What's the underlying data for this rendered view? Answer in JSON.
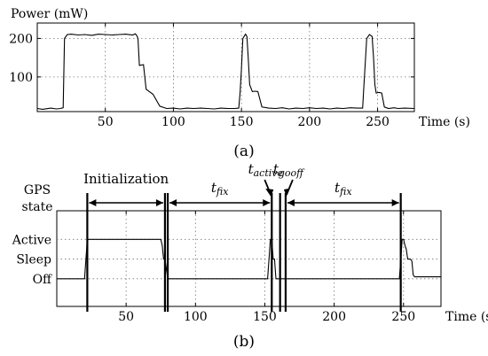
{
  "chart_data": [
    {
      "panel": "(a)",
      "type": "line",
      "ylabel": "Power (mW)",
      "xlabel": "Time (s)",
      "xlim": [
        0,
        277
      ],
      "ylim": [
        10,
        240
      ],
      "xticks": [
        50,
        100,
        150,
        200,
        250
      ],
      "yticks": [
        100,
        200
      ],
      "grid": true,
      "series": [
        {
          "x": [
            0,
            4,
            10,
            14,
            17,
            19,
            20,
            22,
            25,
            30,
            35,
            40,
            45,
            50,
            55,
            60,
            65,
            70,
            72,
            73,
            74,
            75,
            78,
            80,
            85,
            90,
            95,
            100,
            105,
            110,
            115,
            120,
            125,
            130,
            135,
            140,
            145,
            148,
            149,
            150,
            151,
            153,
            154,
            155,
            156,
            158,
            160,
            162,
            165,
            170,
            175,
            180,
            185,
            190,
            195,
            200,
            205,
            210,
            215,
            220,
            225,
            230,
            235,
            239,
            240,
            242,
            244,
            246,
            247,
            248,
            249,
            251,
            253,
            255,
            258,
            262,
            265,
            270,
            277
          ],
          "y": [
            18,
            16,
            19,
            17,
            18,
            20,
            200,
            210,
            211,
            209,
            210,
            208,
            211,
            210,
            209,
            210,
            211,
            209,
            212,
            208,
            200,
            130,
            132,
            68,
            55,
            24,
            18,
            19,
            17,
            19,
            18,
            19,
            18,
            17,
            19,
            18,
            18,
            19,
            60,
            120,
            200,
            211,
            205,
            148,
            80,
            62,
            63,
            62,
            22,
            19,
            18,
            20,
            17,
            19,
            18,
            20,
            18,
            19,
            17,
            19,
            18,
            20,
            19,
            19,
            80,
            200,
            210,
            205,
            150,
            80,
            58,
            60,
            58,
            22,
            18,
            20,
            18,
            19,
            18
          ]
        }
      ]
    },
    {
      "panel": "(b)",
      "type": "line",
      "ylabel": "GPS state",
      "xlabel": "Time (s)",
      "xlim": [
        0,
        277
      ],
      "ylim": [
        -1.4,
        3.45
      ],
      "xticks": [
        50,
        100,
        150,
        200,
        250
      ],
      "yticks": [
        "Off",
        "Sleep",
        "Active"
      ],
      "grid": true,
      "series": [
        {
          "x": [
            0,
            20,
            22,
            75,
            76,
            77,
            78,
            80,
            82,
            152,
            153,
            154,
            155,
            156,
            157,
            158,
            159,
            247,
            248,
            249,
            250,
            251,
            252,
            253,
            254,
            255,
            256,
            257,
            258,
            277
          ],
          "y": [
            0,
            0,
            2,
            2,
            1.7,
            1,
            1,
            0,
            0,
            0,
            1,
            2,
            2,
            1,
            1,
            0,
            0,
            0,
            1,
            2,
            2,
            1.7,
            1.5,
            1,
            1,
            1,
            0.9,
            0.2,
            0.1,
            0.1
          ]
        }
      ],
      "markers": [
        22,
        78,
        80,
        155,
        161,
        165,
        248
      ],
      "annotations": [
        {
          "text": "Initialization",
          "from": 22,
          "to": 78
        },
        {
          "text": "t",
          "sub": "fix",
          "from": 80,
          "to": 155
        },
        {
          "text": "t",
          "sub": "active",
          "at": 155
        },
        {
          "text": "t",
          "sub": "gooff",
          "at": 165
        },
        {
          "text": "t",
          "sub": "fix",
          "from": 165,
          "to": 248
        }
      ]
    }
  ]
}
